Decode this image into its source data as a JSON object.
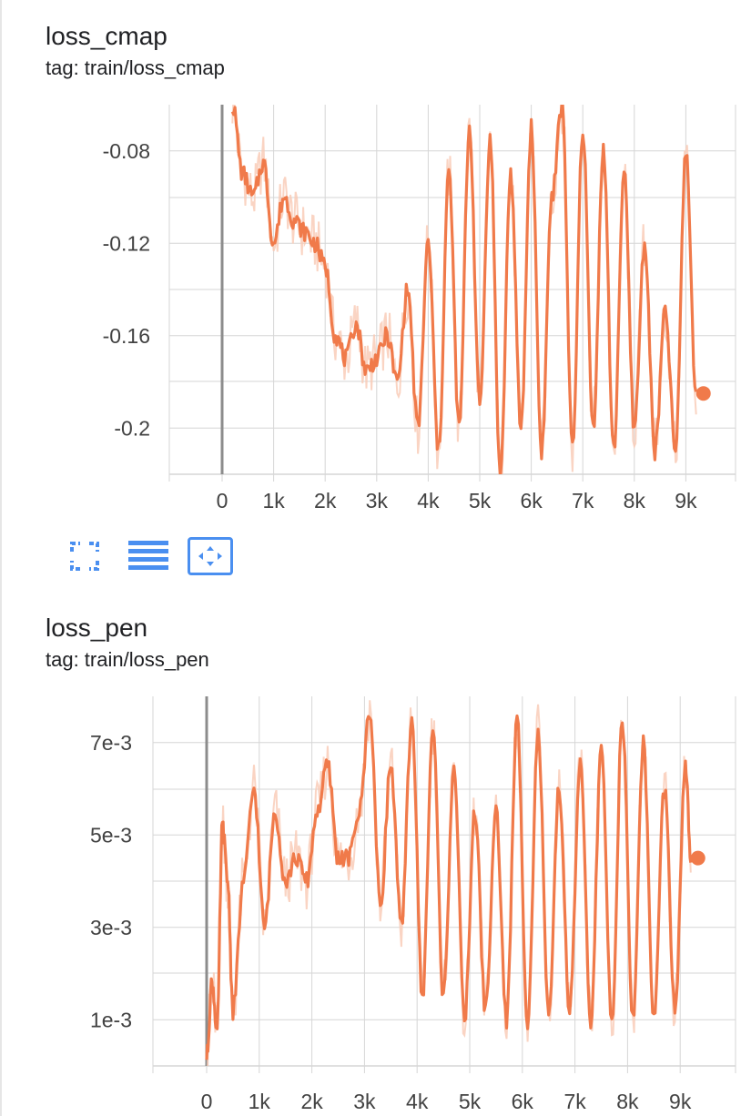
{
  "charts": [
    {
      "title": "loss_cmap",
      "tag": "tag: train/loss_cmap"
    },
    {
      "title": "loss_pen",
      "tag": "tag: train/loss_pen"
    }
  ],
  "toolbar": {
    "fullscreen_icon": "fullscreen-icon",
    "data_table_icon": "data-table-icon",
    "fit_domain_icon": "fit-domain-icon"
  },
  "colors": {
    "series": "#f07a4a",
    "series_raw": "#f9c9b4",
    "grid": "#d6d6d6",
    "axis": "#9e9e9e",
    "icon": "#4a8ff0"
  },
  "chart_data": [
    {
      "type": "line",
      "title": "loss_cmap",
      "subtitle": "tag: train/loss_cmap",
      "xlabel": "",
      "ylabel": "",
      "xlim": [
        -1000,
        10000
      ],
      "ylim": [
        -0.22,
        -0.06
      ],
      "x_ticks": [
        0,
        1000,
        2000,
        3000,
        4000,
        5000,
        6000,
        7000,
        8000,
        9000
      ],
      "x_tick_labels": [
        "0",
        "1k",
        "2k",
        "3k",
        "4k",
        "5k",
        "6k",
        "7k",
        "8k",
        "9k"
      ],
      "y_ticks": [
        -0.08,
        -0.12,
        -0.16,
        -0.2
      ],
      "y_tick_labels": [
        "-0.08",
        "-0.12",
        "-0.16",
        "-0.2"
      ],
      "grid": true,
      "series": [
        {
          "name": "train/loss_cmap",
          "x": [
            200,
            400,
            600,
            800,
            1000,
            1200,
            1400,
            1600,
            1800,
            2000,
            2200,
            2400,
            2600,
            2800,
            3000,
            3200,
            3400,
            3600,
            3800,
            4000,
            4200,
            4400,
            4600,
            4800,
            5000,
            5200,
            5400,
            5600,
            5800,
            6000,
            6200,
            6400,
            6600,
            6800,
            7000,
            7200,
            7400,
            7600,
            7800,
            8000,
            8200,
            8400,
            8600,
            8800,
            9000,
            9200
          ],
          "y": [
            -0.06,
            -0.09,
            -0.1,
            -0.085,
            -0.12,
            -0.1,
            -0.11,
            -0.115,
            -0.12,
            -0.13,
            -0.16,
            -0.17,
            -0.155,
            -0.175,
            -0.17,
            -0.16,
            -0.18,
            -0.14,
            -0.2,
            -0.12,
            -0.21,
            -0.09,
            -0.2,
            -0.07,
            -0.19,
            -0.075,
            -0.22,
            -0.09,
            -0.2,
            -0.07,
            -0.21,
            -0.1,
            -0.06,
            -0.21,
            -0.07,
            -0.2,
            -0.08,
            -0.21,
            -0.09,
            -0.2,
            -0.12,
            -0.21,
            -0.15,
            -0.21,
            -0.08,
            -0.185
          ]
        }
      ],
      "last_value": -0.185
    },
    {
      "type": "line",
      "title": "loss_pen",
      "subtitle": "tag: train/loss_pen",
      "xlabel": "",
      "ylabel": "",
      "xlim": [
        -1000,
        10000
      ],
      "ylim": [
        0.0,
        0.008
      ],
      "x_ticks": [
        0,
        1000,
        2000,
        3000,
        4000,
        5000,
        6000,
        7000,
        8000,
        9000
      ],
      "x_tick_labels": [
        "0",
        "1k",
        "2k",
        "3k",
        "4k",
        "5k",
        "6k",
        "7k",
        "8k",
        "9k"
      ],
      "y_ticks": [
        0.001,
        0.003,
        0.005,
        0.007
      ],
      "y_tick_labels": [
        "1e-3",
        "3e-3",
        "5e-3",
        "7e-3"
      ],
      "grid": true,
      "series": [
        {
          "name": "train/loss_pen",
          "x": [
            0,
            100,
            200,
            300,
            400,
            500,
            700,
            900,
            1100,
            1300,
            1500,
            1700,
            1900,
            2100,
            2300,
            2500,
            2700,
            2900,
            3100,
            3300,
            3500,
            3700,
            3900,
            4100,
            4300,
            4500,
            4700,
            4900,
            5100,
            5300,
            5500,
            5700,
            5900,
            6100,
            6300,
            6500,
            6700,
            6900,
            7100,
            7300,
            7500,
            7700,
            7900,
            8100,
            8300,
            8500,
            8700,
            8900,
            9100,
            9200
          ],
          "y": [
            0.0002,
            0.0018,
            0.0008,
            0.0052,
            0.004,
            0.0012,
            0.004,
            0.006,
            0.003,
            0.0055,
            0.004,
            0.0045,
            0.004,
            0.0055,
            0.0065,
            0.0045,
            0.0045,
            0.0055,
            0.0077,
            0.0035,
            0.0065,
            0.003,
            0.0075,
            0.0015,
            0.0073,
            0.0015,
            0.0065,
            0.001,
            0.0055,
            0.0012,
            0.0055,
            0.001,
            0.0075,
            0.001,
            0.0072,
            0.001,
            0.006,
            0.0012,
            0.0065,
            0.001,
            0.0068,
            0.001,
            0.0075,
            0.001,
            0.007,
            0.001,
            0.006,
            0.0012,
            0.0065,
            0.0045
          ]
        }
      ],
      "last_value": 0.0045
    }
  ]
}
